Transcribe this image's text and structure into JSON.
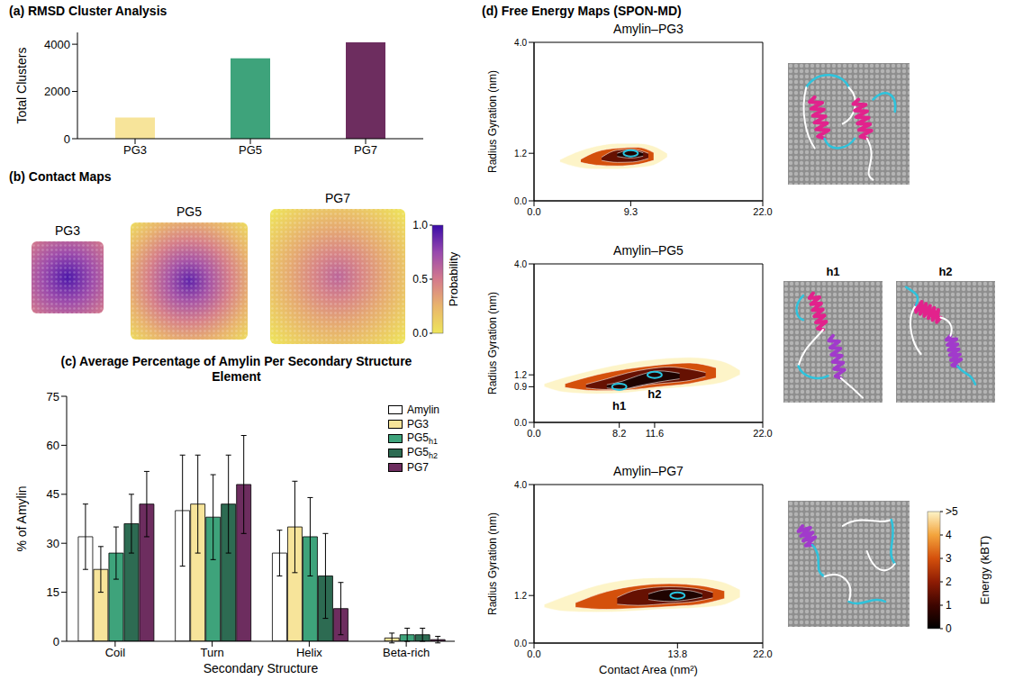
{
  "chart_data": [
    {
      "type": "bar",
      "title": "(a) RMSD Cluster Analysis",
      "y_label": "Total Clusters",
      "categories": [
        "PG3",
        "PG5",
        "PG7"
      ],
      "values": [
        900,
        3400,
        4080
      ],
      "colors": [
        "#f7e49a",
        "#3ea37b",
        "#6d2d5f"
      ],
      "ylim": [
        0,
        4500
      ],
      "yticks": [
        0,
        2000,
        4000
      ]
    },
    {
      "type": "heatmap",
      "title": "(b) Contact Maps",
      "maps": [
        {
          "name": "PG3",
          "center": 0.95,
          "edge": 0.5
        },
        {
          "name": "PG5",
          "center": 0.9,
          "edge": 0.05
        },
        {
          "name": "PG7",
          "center": 0.6,
          "edge": 0.0
        }
      ],
      "colorbar": {
        "label": "Probability",
        "range": [
          0,
          1
        ],
        "ticks": [
          {
            "value": 0,
            "label": "0.0"
          },
          {
            "value": 0.5,
            "label": "0.5"
          },
          {
            "value": 1,
            "label": "1.0"
          }
        ]
      }
    },
    {
      "type": "bar",
      "title": "(c) Average Percentage of Amylin Per Secondary Structure Element",
      "x_label": "Secondary Structure",
      "y_label": "% of Amylin",
      "categories": [
        "Coil",
        "Turn",
        "Helix",
        "Beta-rich"
      ],
      "series": [
        {
          "name": "Amylin",
          "color": "#ffffff",
          "values": [
            32,
            40,
            27,
            0
          ],
          "errors": [
            10,
            17,
            7,
            0
          ]
        },
        {
          "name": "PG3",
          "color": "#f7e49a",
          "values": [
            22,
            42,
            35,
            1
          ],
          "errors": [
            7,
            15,
            14,
            1.5
          ]
        },
        {
          "name": "PG5h1",
          "color": "#3ea37b",
          "values": [
            27,
            38,
            32,
            2
          ],
          "errors": [
            8,
            13,
            12,
            2
          ]
        },
        {
          "name": "PG5h2",
          "color": "#2d6b52",
          "values": [
            36,
            42,
            20,
            2
          ],
          "errors": [
            9,
            15,
            13,
            2
          ]
        },
        {
          "name": "PG7",
          "color": "#6d2d5f",
          "values": [
            42,
            48,
            10,
            0.5
          ],
          "errors": [
            10,
            15,
            8,
            1
          ]
        }
      ],
      "ylim": [
        0,
        75
      ],
      "yticks": [
        0,
        15,
        30,
        45,
        60,
        75
      ],
      "legend": "top-right"
    },
    {
      "type": "contour",
      "panel_title": "(d) Free Energy Maps (SPON-MD)",
      "title": "Amylin–PG3",
      "y_label": "Radius Gyration (nm)",
      "xlim": [
        0,
        22
      ],
      "ylim": [
        0,
        4
      ],
      "xticks": [
        {
          "value": 0,
          "label": "0.0"
        },
        9.3,
        {
          "value": 22,
          "label": "22.0"
        }
      ],
      "yticks": [
        {
          "value": 0,
          "label": "0.0"
        },
        1.2,
        {
          "value": 4,
          "label": "4.0"
        }
      ],
      "levels": [
        {
          "energy": 5,
          "x": [
            2.5,
            4,
            6,
            8,
            10,
            11.5,
            12.8
          ],
          "low": [
            0.98,
            0.86,
            0.8,
            0.8,
            0.84,
            0.9,
            1.1
          ],
          "high": [
            1.04,
            1.22,
            1.38,
            1.45,
            1.45,
            1.38,
            1.2
          ]
        },
        {
          "energy": 3,
          "x": [
            4.5,
            6,
            8,
            10,
            11.5
          ],
          "low": [
            0.97,
            0.9,
            0.88,
            0.92,
            1.02
          ],
          "high": [
            1.05,
            1.24,
            1.33,
            1.35,
            1.22
          ]
        },
        {
          "energy": 1.5,
          "x": [
            6.5,
            8,
            9.5,
            11
          ],
          "low": [
            1.02,
            0.97,
            0.98,
            1.07
          ],
          "high": [
            1.1,
            1.28,
            1.3,
            1.2
          ]
        },
        {
          "energy": 0.5,
          "x": [
            8,
            9.3,
            10.5
          ],
          "low": [
            1.12,
            1.08,
            1.13
          ],
          "high": [
            1.2,
            1.28,
            1.21
          ]
        }
      ],
      "minima": [
        {
          "x": 9.3,
          "y": 1.2
        }
      ]
    },
    {
      "type": "contour",
      "title": "Amylin–PG5",
      "y_label": "Radius Gyration (nm)",
      "xlim": [
        0,
        22
      ],
      "ylim": [
        0,
        4
      ],
      "xticks": [
        {
          "value": 0,
          "label": "0.0"
        },
        8.2,
        11.6,
        {
          "value": 22,
          "label": "22.0"
        }
      ],
      "yticks": [
        {
          "value": 0,
          "label": "0.0"
        },
        0.9,
        1.2,
        {
          "value": 4,
          "label": "4.0"
        }
      ],
      "levels": [
        {
          "energy": 5,
          "x": [
            1,
            3,
            6,
            9,
            12,
            15,
            18,
            19.8
          ],
          "low": [
            0.9,
            0.76,
            0.72,
            0.75,
            0.84,
            0.9,
            1.0,
            1.2
          ],
          "high": [
            0.98,
            1.14,
            1.34,
            1.5,
            1.6,
            1.64,
            1.55,
            1.32
          ]
        },
        {
          "energy": 3,
          "x": [
            3,
            6,
            9,
            12,
            15,
            17.5
          ],
          "low": [
            0.88,
            0.8,
            0.82,
            0.9,
            0.98,
            1.12
          ],
          "high": [
            0.98,
            1.2,
            1.35,
            1.45,
            1.5,
            1.38
          ]
        },
        {
          "energy": 1.5,
          "x": [
            5,
            7,
            9,
            11,
            13,
            15,
            16.5
          ],
          "low": [
            0.87,
            0.83,
            0.85,
            0.95,
            1.0,
            1.06,
            1.16
          ],
          "high": [
            0.96,
            1.1,
            1.25,
            1.35,
            1.4,
            1.34,
            1.26
          ]
        },
        {
          "energy": 0.5,
          "x": [
            7,
            8.5,
            10,
            12,
            14
          ],
          "low": [
            0.87,
            0.84,
            0.92,
            1.02,
            1.1
          ],
          "high": [
            0.95,
            1.04,
            1.18,
            1.3,
            1.24
          ]
        }
      ],
      "minima": [
        {
          "x": 8.2,
          "y": 0.9,
          "label": "h1"
        },
        {
          "x": 11.6,
          "y": 1.2,
          "label": "h2"
        }
      ],
      "image_labels": [
        "h1",
        "h2"
      ]
    },
    {
      "type": "contour",
      "title": "Amylin–PG7",
      "x_label": "Contact Area (nm²)",
      "y_label": "Radius Gyration (nm)",
      "xlim": [
        0,
        22
      ],
      "ylim": [
        0,
        4
      ],
      "xticks": [
        {
          "value": 0,
          "label": "0.0"
        },
        13.8,
        {
          "value": 22,
          "label": "22.0"
        }
      ],
      "yticks": [
        {
          "value": 0,
          "label": "0.0"
        },
        1.2,
        {
          "value": 4,
          "label": "4.0"
        }
      ],
      "levels": [
        {
          "energy": 5,
          "x": [
            1,
            3,
            6,
            9,
            12,
            15,
            18,
            19.8
          ],
          "low": [
            0.9,
            0.8,
            0.78,
            0.8,
            0.85,
            0.88,
            0.95,
            1.15
          ],
          "high": [
            0.98,
            1.18,
            1.45,
            1.6,
            1.65,
            1.65,
            1.55,
            1.35
          ]
        },
        {
          "energy": 3,
          "x": [
            4,
            7,
            10,
            13,
            16,
            18.3
          ],
          "low": [
            0.9,
            0.85,
            0.88,
            0.92,
            0.98,
            1.12
          ],
          "high": [
            1.02,
            1.3,
            1.45,
            1.5,
            1.45,
            1.32
          ]
        },
        {
          "energy": 1.5,
          "x": [
            8,
            10,
            13,
            15.5,
            17.2
          ],
          "low": [
            0.98,
            0.95,
            1.0,
            1.05,
            1.14
          ],
          "high": [
            1.15,
            1.35,
            1.42,
            1.38,
            1.28
          ]
        },
        {
          "energy": 0.5,
          "x": [
            11,
            13,
            15,
            16.2
          ],
          "low": [
            1.1,
            1.05,
            1.1,
            1.16
          ],
          "high": [
            1.24,
            1.35,
            1.32,
            1.24
          ]
        }
      ],
      "minima": [
        {
          "x": 13.8,
          "y": 1.2
        }
      ],
      "colorbar": {
        "label": "Energy (kBT)",
        "range": [
          0,
          5
        ],
        "ticks": [
          0,
          1,
          2,
          3,
          4,
          {
            "value": 5,
            "label": ">5"
          }
        ]
      }
    }
  ]
}
